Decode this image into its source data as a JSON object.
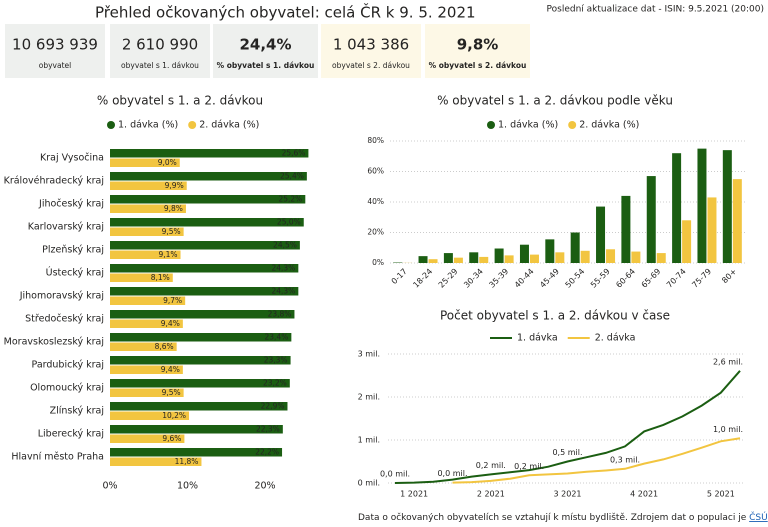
{
  "header": {
    "title": "Přehled očkovaných obyvatel: celá ČR k 9. 5. 2021",
    "updated": "Poslední aktualizace dat - ISIN: 9.5.2021 (20:00)"
  },
  "kpis": [
    {
      "value": "10 693 939",
      "label": "obyvatel"
    },
    {
      "value": "2 610 990",
      "label": "obyvatel s 1. dávkou"
    },
    {
      "value": "24,4%",
      "label": "% obyvatel s 1. dávkou"
    },
    {
      "value": "1 043 386",
      "label": "obyvatel s 2. dávkou"
    },
    {
      "value": "9,8%",
      "label": "% obyvatel s 2. dávkou"
    }
  ],
  "chart_data": [
    {
      "type": "hbar",
      "title": "% obyvatel s 1. a 2. dávkou",
      "categories": [
        "Kraj Vysočina",
        "Královéhradecký kraj",
        "Jihočeský kraj",
        "Karlovarský kraj",
        "Plzeňský kraj",
        "Ústecký kraj",
        "Jihomoravský kraj",
        "Středočeský kraj",
        "Moravskoslezský kraj",
        "Pardubický kraj",
        "Olomoucký kraj",
        "Zlínský kraj",
        "Liberecký kraj",
        "Hlavní město Praha"
      ],
      "series": [
        {
          "name": "1. dávka (%)",
          "color": "#1b5e12",
          "values": [
            25.6,
            25.4,
            25.2,
            25.0,
            24.5,
            24.3,
            24.3,
            23.8,
            23.4,
            23.3,
            23.2,
            22.9,
            22.3,
            22.2
          ],
          "value_labels": [
            "25,6%",
            "25,4%",
            "25,2%",
            "25,0%",
            "24,5%",
            "24,3%",
            "24,3%",
            "23,8%",
            "23,4%",
            "23,3%",
            "23,2%",
            "22,9%",
            "22,3%",
            "22,2%"
          ]
        },
        {
          "name": "2. dávka (%)",
          "color": "#f2c540",
          "values": [
            9.0,
            9.9,
            9.8,
            9.5,
            9.1,
            8.1,
            9.7,
            9.4,
            8.6,
            9.4,
            9.5,
            10.2,
            9.6,
            11.8
          ],
          "value_labels": [
            "9,0%",
            "9,9%",
            "9,8%",
            "9,5%",
            "9,1%",
            "8,1%",
            "9,7%",
            "9,4%",
            "8,6%",
            "9,4%",
            "9,5%",
            "10,2%",
            "9,6%",
            "11,8%"
          ]
        }
      ],
      "xlim": [
        0,
        26
      ],
      "xticks": [
        {
          "value": 0,
          "label": "0%"
        },
        {
          "value": 10,
          "label": "10%"
        },
        {
          "value": 20,
          "label": "20%"
        }
      ],
      "grid": false
    },
    {
      "type": "bar",
      "title": "% obyvatel s 1. a 2. dávkou podle věku",
      "categories": [
        "0-17",
        "18-24",
        "25-29",
        "30-34",
        "35-39",
        "40-44",
        "45-49",
        "50-54",
        "55-59",
        "60-64",
        "65-69",
        "70-74",
        "75-79",
        "80+"
      ],
      "series": [
        {
          "name": "1. dávka (%)",
          "color": "#1b5e12",
          "values": [
            0.3,
            4.5,
            6.5,
            7,
            9.5,
            12,
            15.5,
            20,
            37,
            44,
            57,
            72,
            75,
            74
          ]
        },
        {
          "name": "2. dávka (%)",
          "color": "#f2c540",
          "values": [
            0.1,
            2.5,
            3.5,
            4,
            5,
            5.5,
            7,
            8,
            9,
            7.5,
            6.5,
            28,
            43,
            55
          ]
        }
      ],
      "ylim": [
        0,
        80
      ],
      "yticks": [
        {
          "value": 0,
          "label": "0%"
        },
        {
          "value": 20,
          "label": "20%"
        },
        {
          "value": 40,
          "label": "40%"
        },
        {
          "value": 60,
          "label": "60%"
        },
        {
          "value": 80,
          "label": "80%"
        }
      ],
      "grid": true
    },
    {
      "type": "line",
      "title": "Počet obyvatel s 1. a 2. dávkou v čase",
      "categories": [
        null,
        "1 2021",
        null,
        null,
        null,
        "2 2021",
        null,
        null,
        null,
        "3 2021",
        null,
        null,
        null,
        "4 2021",
        null,
        null,
        null,
        "5 2021",
        null
      ],
      "series": [
        {
          "name": "1. dávka",
          "color": "#1b5e12",
          "values": [
            0,
            0.01,
            0.03,
            0.08,
            0.15,
            0.2,
            0.25,
            0.3,
            0.38,
            0.5,
            0.6,
            0.7,
            0.85,
            1.2,
            1.35,
            1.55,
            1.8,
            2.1,
            2.61
          ],
          "value_labels": [
            "0,0 mil.",
            null,
            null,
            null,
            null,
            "0,2 mil.",
            null,
            null,
            null,
            "0,5 mil.",
            null,
            null,
            null,
            null,
            null,
            null,
            null,
            null,
            "2,6 mil."
          ]
        },
        {
          "name": "2. dávka",
          "color": "#f2c540",
          "values": [
            null,
            null,
            null,
            0.01,
            0.02,
            0.05,
            0.1,
            0.18,
            0.2,
            0.22,
            0.26,
            0.29,
            0.33,
            0.45,
            0.55,
            0.68,
            0.82,
            0.97,
            1.04
          ],
          "value_labels": [
            null,
            null,
            null,
            "0,0 mil.",
            null,
            null,
            null,
            "0,2 mil.",
            null,
            null,
            null,
            null,
            "0,3 mil.",
            null,
            null,
            null,
            null,
            null,
            "1,0 mil."
          ]
        }
      ],
      "ylim": [
        0,
        3
      ],
      "yticks": [
        {
          "value": 0,
          "label": "0 mil."
        },
        {
          "value": 1,
          "label": "1 mil."
        },
        {
          "value": 2,
          "label": "2 mil."
        },
        {
          "value": 3,
          "label": "3 mil."
        }
      ],
      "grid": true
    }
  ],
  "footer": {
    "text": "Data o očkovaných obyvatelích se vztahují k místu bydliště. Zdrojem dat o populaci je",
    "link": "ČSÚ",
    "end": "."
  }
}
